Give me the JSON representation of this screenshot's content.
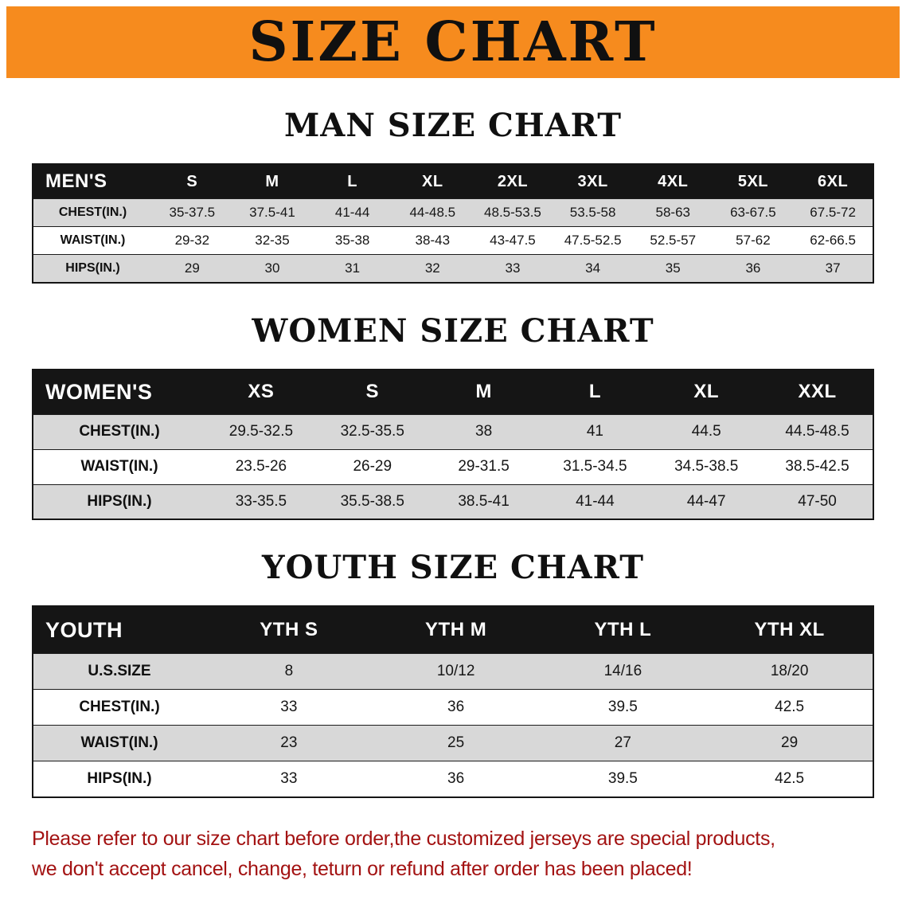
{
  "banner": {
    "title": "SIZE CHART"
  },
  "colors": {
    "banner_orange": "#F68B1E",
    "table_header_black": "#151515",
    "row_shade_gray": "#D8D8D8",
    "notice_red": "#A31212"
  },
  "sections": [
    {
      "id": "men",
      "heading": "MAN SIZE CHART",
      "table_title": "MEN'S",
      "columns": [
        "S",
        "M",
        "L",
        "XL",
        "2XL",
        "3XL",
        "4XL",
        "5XL",
        "6XL"
      ],
      "rows": [
        {
          "label": "CHEST(IN.)",
          "values": [
            "35-37.5",
            "37.5-41",
            "41-44",
            "44-48.5",
            "48.5-53.5",
            "53.5-58",
            "58-63",
            "63-67.5",
            "67.5-72"
          ]
        },
        {
          "label": "WAIST(IN.)",
          "values": [
            "29-32",
            "32-35",
            "35-38",
            "38-43",
            "43-47.5",
            "47.5-52.5",
            "52.5-57",
            "57-62",
            "62-66.5"
          ]
        },
        {
          "label": "HIPS(IN.)",
          "values": [
            "29",
            "30",
            "31",
            "32",
            "33",
            "34",
            "35",
            "36",
            "37"
          ]
        }
      ]
    },
    {
      "id": "women",
      "heading": "WOMEN SIZE CHART",
      "table_title": "WOMEN'S",
      "columns": [
        "XS",
        "S",
        "M",
        "L",
        "XL",
        "XXL"
      ],
      "rows": [
        {
          "label": "CHEST(IN.)",
          "values": [
            "29.5-32.5",
            "32.5-35.5",
            "38",
            "41",
            "44.5",
            "44.5-48.5"
          ]
        },
        {
          "label": "WAIST(IN.)",
          "values": [
            "23.5-26",
            "26-29",
            "29-31.5",
            "31.5-34.5",
            "34.5-38.5",
            "38.5-42.5"
          ]
        },
        {
          "label": "HIPS(IN.)",
          "values": [
            "33-35.5",
            "35.5-38.5",
            "38.5-41",
            "41-44",
            "44-47",
            "47-50"
          ]
        }
      ]
    },
    {
      "id": "youth",
      "heading": "YOUTH SIZE CHART",
      "table_title": "YOUTH",
      "columns": [
        "YTH S",
        "YTH M",
        "YTH L",
        "YTH XL"
      ],
      "rows": [
        {
          "label": "U.S.SIZE",
          "values": [
            "8",
            "10/12",
            "14/16",
            "18/20"
          ]
        },
        {
          "label": "CHEST(IN.)",
          "values": [
            "33",
            "36",
            "39.5",
            "42.5"
          ]
        },
        {
          "label": "WAIST(IN.)",
          "values": [
            "23",
            "25",
            "27",
            "29"
          ]
        },
        {
          "label": "HIPS(IN.)",
          "values": [
            "33",
            "36",
            "39.5",
            "42.5"
          ]
        }
      ]
    }
  ],
  "footer": {
    "lines": [
      "Please refer to our size chart before order,the customized jerseys are special products,",
      "we don't accept cancel, change, teturn or refund after order has been placed!"
    ]
  }
}
